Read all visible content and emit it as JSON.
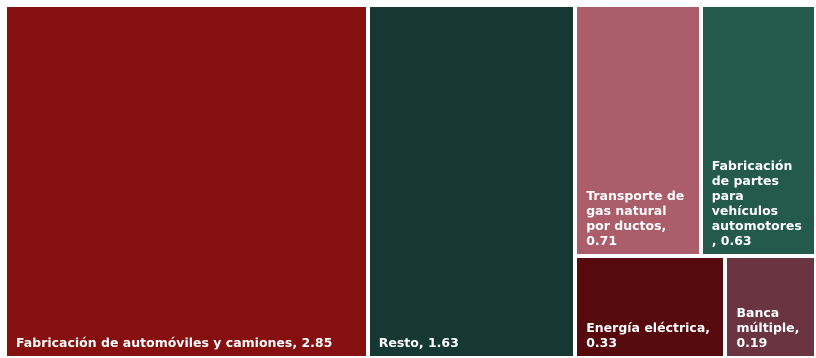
{
  "chart_data": {
    "type": "treemap",
    "title": "",
    "items": [
      {
        "name": "Fabricación de automóviles y camiones",
        "value": 2.85,
        "label": "Fabricación de automóviles y camiones,  2.85",
        "color": "#861010"
      },
      {
        "name": "Resto",
        "value": 1.63,
        "label": "Resto,  1.63",
        "color": "#163832"
      },
      {
        "name": "Transporte de gas natural por ductos",
        "value": 0.71,
        "label": "Transporte de gas natural por ductos,  0.71",
        "color": "#AB5D6A"
      },
      {
        "name": "Fabricación de partes para vehículos automotores",
        "value": 0.63,
        "label": "Fabricación de partes para vehículos automotores ,  0.63",
        "color": "#235A4C"
      },
      {
        "name": "Energía eléctrica",
        "value": 0.33,
        "label": "Energía eléctrica, 0.33",
        "color": "#560A0E"
      },
      {
        "name": "Banca múltiple",
        "value": 0.19,
        "label": "Banca múltiple, 0.19",
        "color": "#6A3540"
      }
    ]
  }
}
